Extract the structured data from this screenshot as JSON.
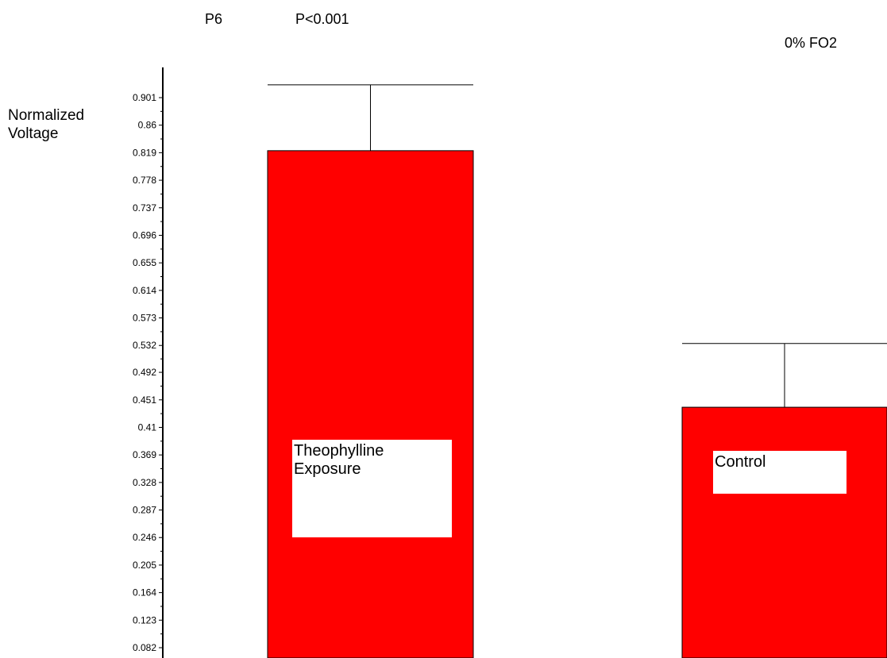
{
  "header": {
    "age": "P6",
    "p_value": "P<0.001",
    "condition": "0% FO2"
  },
  "chart_data": {
    "type": "bar",
    "title": "",
    "ylabel": [
      "Normalized",
      "Voltage"
    ],
    "xlabel": "",
    "categories": [
      "Theophylline Exposure",
      "Control"
    ],
    "category_lines": [
      [
        "Theophylline",
        "Exposure"
      ],
      [
        "Control"
      ]
    ],
    "values": [
      0.822,
      0.44
    ],
    "error_upper": [
      0.92,
      0.535
    ],
    "yticks": [
      "0.082",
      "0.123",
      "0.164",
      "0.205",
      "0.246",
      "0.287",
      "0.328",
      "0.369",
      "0.41",
      "0.451",
      "0.492",
      "0.532",
      "0.573",
      "0.614",
      "0.655",
      "0.696",
      "0.737",
      "0.778",
      "0.819",
      "0.86",
      "0.901"
    ],
    "ylim": [
      0.06,
      0.92
    ],
    "grid": false,
    "legend": "none",
    "bar_color": "#ff0000"
  }
}
